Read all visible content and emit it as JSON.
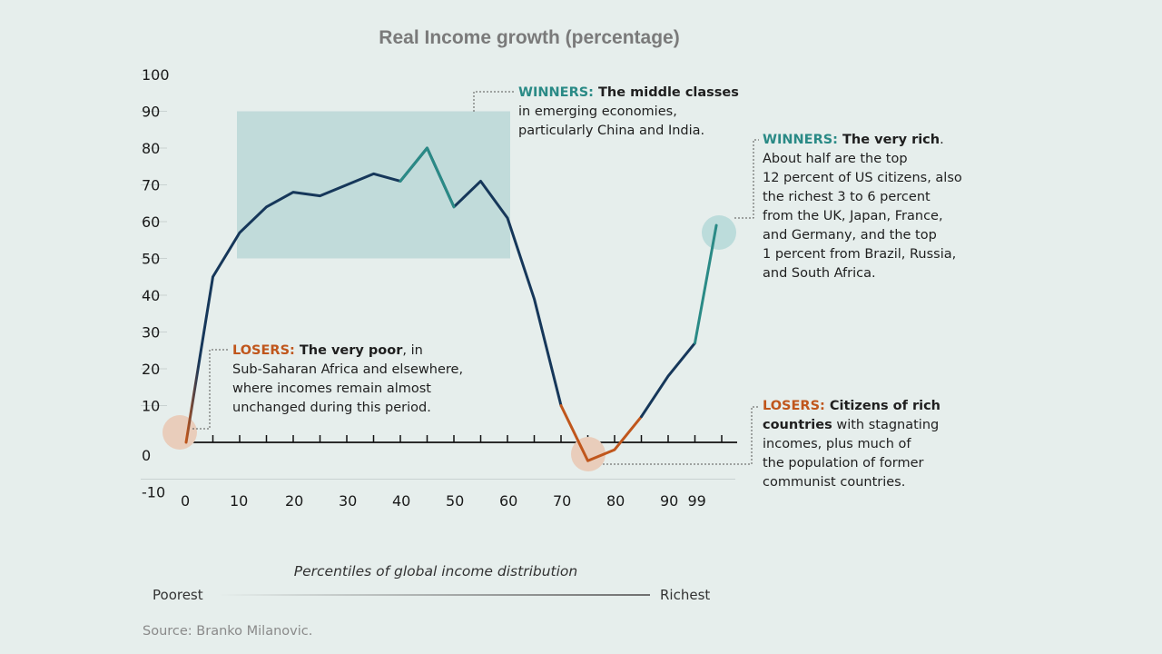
{
  "chart_data": {
    "type": "line",
    "title": "Real Income growth (percentage)",
    "xlabel": "Percentiles of global income distribution",
    "ylabel": "",
    "ylim": [
      -10,
      100
    ],
    "xlim": [
      0,
      100
    ],
    "y_ticks": [
      "100",
      "90",
      "80",
      "70",
      "60",
      "50",
      "40",
      "30",
      "20",
      "10",
      "0",
      "-10"
    ],
    "x_ticks": [
      "0",
      "10",
      "20",
      "30",
      "40",
      "50",
      "60",
      "70",
      "80",
      "90",
      "99"
    ],
    "x": [
      0,
      5,
      10,
      15,
      20,
      25,
      30,
      35,
      40,
      45,
      50,
      55,
      60,
      65,
      70,
      75,
      80,
      85,
      90,
      95,
      99
    ],
    "values": [
      0,
      45,
      57,
      64,
      68,
      67,
      70,
      73,
      71,
      80,
      64,
      71,
      61,
      39,
      10,
      -5,
      -2,
      7,
      18,
      27,
      59
    ],
    "highlight_box": {
      "x": [
        10,
        60
      ],
      "y": [
        50,
        90
      ]
    },
    "scale_left": "Poorest",
    "scale_right": "Richest",
    "source": "Source: Branko Milanovic."
  },
  "colors": {
    "line": "#16375a",
    "teal": "#2a8a86",
    "orange": "#c0561c",
    "box": "#c1dbda",
    "circle_teal": "#bcdcdb",
    "circle_orange": "#e9cdbb"
  },
  "annotations": {
    "winners_middle": {
      "lead": "WINNERS:",
      "bold": " The middle classes",
      "lines": [
        "in emerging economies,",
        "particularly China and India."
      ]
    },
    "winners_rich": {
      "lead": "WINNERS:",
      "bold": " The very rich",
      "after": ".",
      "lines": [
        "About half are the top",
        "12 percent of US citizens, also",
        "the richest 3 to 6 percent",
        "from the UK, Japan, France,",
        "and Germany, and the top",
        "1 percent from Brazil, Russia,",
        "and South Africa."
      ]
    },
    "losers_poor": {
      "lead": "LOSERS:",
      "bold": " The very poor",
      "after": ", in",
      "lines": [
        "Sub-Saharan Africa and elsewhere,",
        "where incomes remain almost",
        "unchanged during this period."
      ]
    },
    "losers_rich": {
      "lead": "LOSERS:",
      "bold": " Citizens of rich",
      "line2_bold": "countries",
      "line2_rest": " with stagnating",
      "lines": [
        "incomes, plus much of",
        "the population of former",
        "communist countries."
      ]
    }
  }
}
